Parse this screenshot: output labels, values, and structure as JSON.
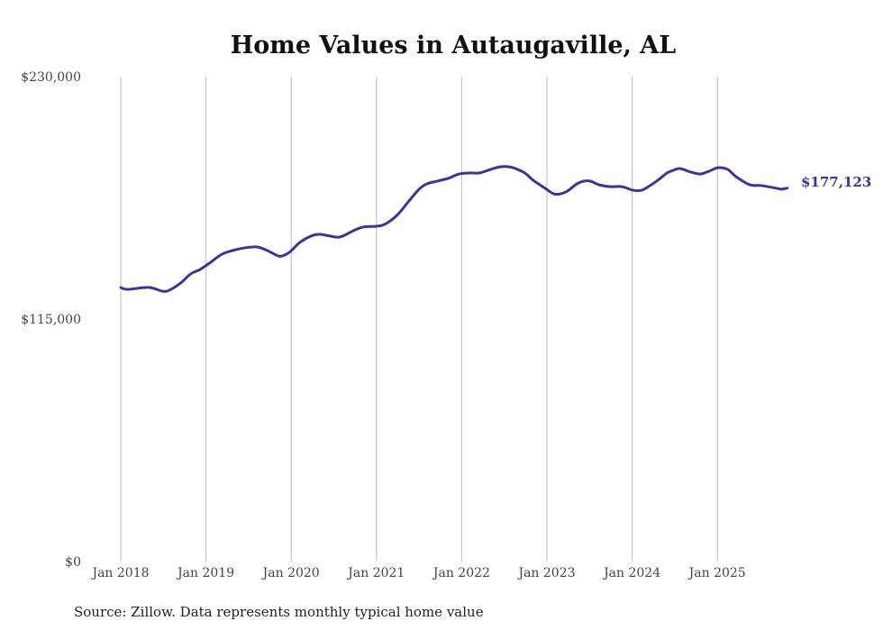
{
  "chart_data": {
    "type": "line",
    "title": "Home Values in Autaugaville, AL",
    "xlabel": "",
    "ylabel": "",
    "source": "Source: Zillow. Data represents monthly typical home value",
    "ylim": [
      0,
      230000
    ],
    "xlim": [
      2018,
      2025.9
    ],
    "grid": "vertical",
    "y_ticks": [
      {
        "value": 0,
        "label": "$0"
      },
      {
        "value": 115000,
        "label": "$115,000"
      },
      {
        "value": 230000,
        "label": "$230,000"
      }
    ],
    "x_ticks": [
      {
        "value": 2018,
        "label": "Jan 2018"
      },
      {
        "value": 2019,
        "label": "Jan 2019"
      },
      {
        "value": 2020,
        "label": "Jan 2020"
      },
      {
        "value": 2021,
        "label": "Jan 2021"
      },
      {
        "value": 2022,
        "label": "Jan 2022"
      },
      {
        "value": 2023,
        "label": "Jan 2023"
      },
      {
        "value": 2024,
        "label": "Jan 2024"
      },
      {
        "value": 2025,
        "label": "Jan 2025"
      }
    ],
    "end_label": "$177,123",
    "line_color": "#3d3497",
    "series": [
      {
        "name": "Typical home value",
        "x": [
          2018.0,
          2018.08,
          2018.33,
          2018.49,
          2018.57,
          2018.7,
          2018.82,
          2018.93,
          2019.04,
          2019.19,
          2019.35,
          2019.46,
          2019.6,
          2019.72,
          2019.85,
          2019.92,
          2019.99,
          2020.1,
          2020.23,
          2020.34,
          2020.52,
          2020.6,
          2020.73,
          2020.84,
          2020.99,
          2021.07,
          2021.15,
          2021.26,
          2021.39,
          2021.5,
          2021.59,
          2021.71,
          2021.84,
          2021.97,
          2022.1,
          2022.21,
          2022.34,
          2022.45,
          2022.56,
          2022.63,
          2022.74,
          2022.84,
          2022.98,
          2023.08,
          2023.16,
          2023.24,
          2023.35,
          2023.43,
          2023.51,
          2023.61,
          2023.74,
          2023.88,
          2024.01,
          2024.11,
          2024.19,
          2024.3,
          2024.41,
          2024.48,
          2024.56,
          2024.69,
          2024.8,
          2024.9,
          2025.01,
          2025.12,
          2025.22,
          2025.38,
          2025.52,
          2025.7,
          2025.75,
          2025.82
        ],
        "values": [
          129960,
          129100,
          130000,
          128200,
          128700,
          132000,
          136400,
          138500,
          141500,
          145800,
          147900,
          148800,
          149200,
          147500,
          144900,
          145300,
          147000,
          151300,
          154300,
          155200,
          153900,
          154300,
          156900,
          158600,
          159000,
          159500,
          161200,
          165000,
          171400,
          176600,
          179100,
          180400,
          181700,
          183800,
          184300,
          184300,
          186000,
          187200,
          187200,
          186400,
          184300,
          180800,
          177000,
          174400,
          174400,
          175700,
          179100,
          180400,
          180400,
          178700,
          177800,
          177800,
          176100,
          176100,
          177800,
          180800,
          184300,
          185500,
          186400,
          184700,
          183800,
          185100,
          186800,
          186000,
          182500,
          178700,
          178300,
          177000,
          176600,
          177123
        ]
      }
    ]
  }
}
